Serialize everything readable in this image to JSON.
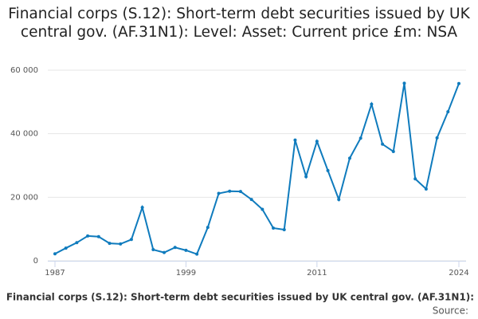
{
  "chart_data": {
    "type": "line",
    "title": "Financial corps (S.12): Short-term debt securities issued by UK central gov. (AF.31N1): Level: Asset: Current price £m: NSA",
    "x": [
      1987,
      1988,
      1989,
      1990,
      1991,
      1992,
      1993,
      1994,
      1995,
      1996,
      1997,
      1998,
      1999,
      2000,
      2001,
      2002,
      2003,
      2004,
      2005,
      2006,
      2007,
      2008,
      2009,
      2010,
      2011,
      2012,
      2013,
      2014,
      2015,
      2016,
      2017,
      2018,
      2019,
      2020,
      2021,
      2022,
      2023,
      2024
    ],
    "series": [
      {
        "name": "Financial corps (S.12): Short-term debt securities issued by UK central gov. (AF.31N1): Level: Asset: Current price £m: NSA",
        "color": "#0f7bbd",
        "values": [
          2200,
          4000,
          5700,
          7800,
          7600,
          5500,
          5300,
          6700,
          16800,
          3500,
          2600,
          4200,
          3300,
          2100,
          10500,
          21200,
          21900,
          21800,
          19300,
          16200,
          10300,
          9800,
          38000,
          26500,
          37600,
          28400,
          19300,
          32300,
          38600,
          49300,
          36700,
          34400,
          55900,
          25800,
          22600,
          38700,
          46900,
          55800
        ]
      }
    ],
    "xlim": [
      1987,
      2024
    ],
    "xticks": [
      1987,
      1999,
      2011,
      2024
    ],
    "ylim": [
      0,
      60000
    ],
    "yticks": [
      {
        "value": 0,
        "label": "0"
      },
      {
        "value": 20000,
        "label": "20 000"
      },
      {
        "value": 40000,
        "label": "40 000"
      },
      {
        "value": 60000,
        "label": "60 000"
      }
    ],
    "grid": true,
    "source": "Source:"
  }
}
